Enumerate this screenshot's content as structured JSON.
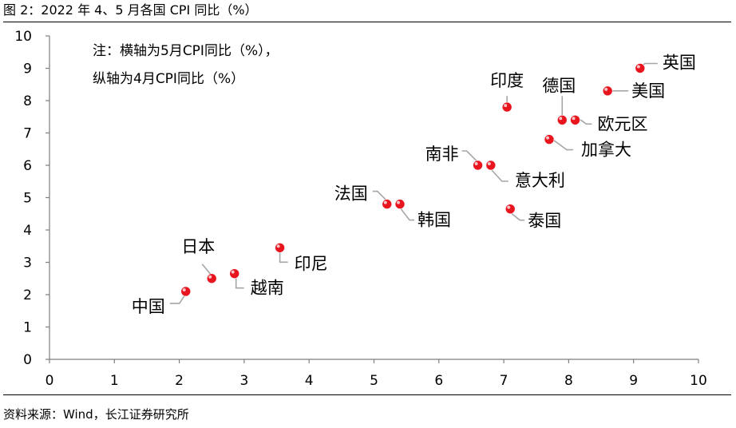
{
  "figure": {
    "title": "图 2：2022 年 4、5 月各国 CPI 同比（%）",
    "source": "资料来源：Wind，长江证券研究所"
  },
  "chart_data": {
    "type": "scatter",
    "title": "",
    "xlabel": "",
    "ylabel": "",
    "xlim": [
      0,
      10
    ],
    "ylim": [
      0,
      10
    ],
    "xticks": [
      "0",
      "1",
      "2",
      "3",
      "4",
      "5",
      "6",
      "7",
      "8",
      "9",
      "10"
    ],
    "yticks": [
      "0",
      "1",
      "2",
      "3",
      "4",
      "5",
      "6",
      "7",
      "8",
      "9",
      "10"
    ],
    "grid": false,
    "legend": "none",
    "marker_color": "#e8141e",
    "annotation_lines": [
      "注：横轴为5月CPI同比（%），",
      "纵轴为4月CPI同比（%）"
    ],
    "points": [
      {
        "label": "英国",
        "x": 9.1,
        "y": 9.0
      },
      {
        "label": "美国",
        "x": 8.6,
        "y": 8.3
      },
      {
        "label": "印度",
        "x": 7.05,
        "y": 7.8
      },
      {
        "label": "德国",
        "x": 7.9,
        "y": 7.4
      },
      {
        "label": "欧元区",
        "x": 8.1,
        "y": 7.4
      },
      {
        "label": "加拿大",
        "x": 7.7,
        "y": 6.8
      },
      {
        "label": "南非",
        "x": 6.6,
        "y": 6.0
      },
      {
        "label": "意大利",
        "x": 6.8,
        "y": 6.0
      },
      {
        "label": "法国",
        "x": 5.2,
        "y": 4.8
      },
      {
        "label": "韩国",
        "x": 5.4,
        "y": 4.8
      },
      {
        "label": "泰国",
        "x": 7.1,
        "y": 4.65
      },
      {
        "label": "印尼",
        "x": 3.55,
        "y": 3.45
      },
      {
        "label": "日本",
        "x": 2.5,
        "y": 2.5
      },
      {
        "label": "越南",
        "x": 2.85,
        "y": 2.65
      },
      {
        "label": "中国",
        "x": 2.1,
        "y": 2.1
      }
    ]
  }
}
